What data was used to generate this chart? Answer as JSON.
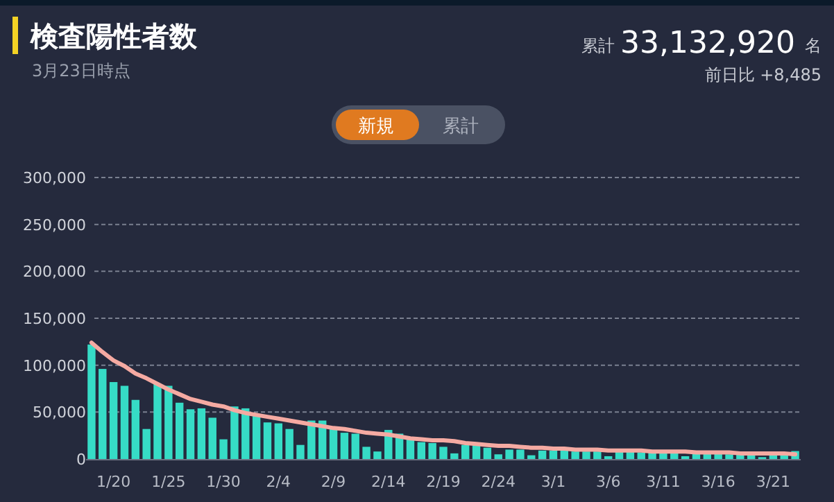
{
  "chart_data": {
    "type": "bar",
    "title": "検査陽性者数",
    "subtitle": "3月23日時点",
    "annotations": [
      "累計",
      "33,132,920",
      "名",
      "前日比 +8,485",
      "新規",
      "累計"
    ],
    "categories": [
      null,
      null,
      "1/20",
      null,
      null,
      null,
      null,
      "1/25",
      null,
      null,
      null,
      null,
      "1/30",
      null,
      null,
      null,
      null,
      "2/4",
      null,
      null,
      null,
      null,
      "2/9",
      null,
      null,
      null,
      null,
      "2/14",
      null,
      null,
      null,
      null,
      "2/19",
      null,
      null,
      null,
      null,
      "2/24",
      null,
      null,
      null,
      null,
      "3/1",
      null,
      null,
      null,
      null,
      "3/6",
      null,
      null,
      null,
      null,
      "3/11",
      null,
      null,
      null,
      null,
      "3/16",
      null,
      null,
      null,
      null,
      "3/21",
      null,
      null
    ],
    "series": [
      {
        "color": "#36dcc6",
        "values": [
          122000,
          96000,
          82000,
          78000,
          63000,
          32000,
          80000,
          78000,
          60000,
          53000,
          54000,
          44000,
          21000,
          56000,
          54000,
          46000,
          39000,
          38000,
          32000,
          15000,
          41000,
          41000,
          33000,
          28000,
          27000,
          13000,
          8000,
          31000,
          27000,
          21000,
          18000,
          17000,
          13000,
          6000,
          15000,
          15000,
          12000,
          5000,
          10000,
          10000,
          4000,
          9000,
          9000,
          9000,
          8000,
          8000,
          8000,
          3000,
          8000,
          8000,
          7000,
          7000,
          7000,
          6000,
          3000,
          6000,
          6000,
          6000,
          5000,
          5000,
          5000,
          2000,
          4000,
          4000,
          8485
        ]
      },
      {
        "type": "line",
        "color": "#f5aaa2",
        "values": [
          124000,
          114000,
          105000,
          99000,
          91000,
          86000,
          80000,
          74000,
          69000,
          64000,
          61000,
          58000,
          56000,
          52000,
          49000,
          47000,
          45000,
          43000,
          41000,
          39000,
          37000,
          35000,
          33000,
          32000,
          30000,
          28000,
          27000,
          26000,
          24000,
          22000,
          21000,
          20000,
          20000,
          19000,
          17000,
          16000,
          15000,
          14000,
          14000,
          13000,
          12000,
          12000,
          11000,
          11000,
          10000,
          10000,
          10000,
          9000,
          9000,
          9000,
          9000,
          8000,
          8000,
          8000,
          8000,
          7000,
          7000,
          7000,
          7000,
          6000,
          6000,
          6000,
          6000,
          6000,
          5000
        ]
      }
    ],
    "ylim": [
      0,
      300000
    ],
    "yticks": [
      {
        "value": 0,
        "label": "0"
      },
      {
        "value": 50000,
        "label": "50,000"
      },
      {
        "value": 100000,
        "label": "100,000"
      },
      {
        "value": 150000,
        "label": "150,000"
      },
      {
        "value": 200000,
        "label": "200,000"
      },
      {
        "value": 250000,
        "label": "250,000"
      },
      {
        "value": 300000,
        "label": "300,000"
      }
    ],
    "grid": "y"
  }
}
